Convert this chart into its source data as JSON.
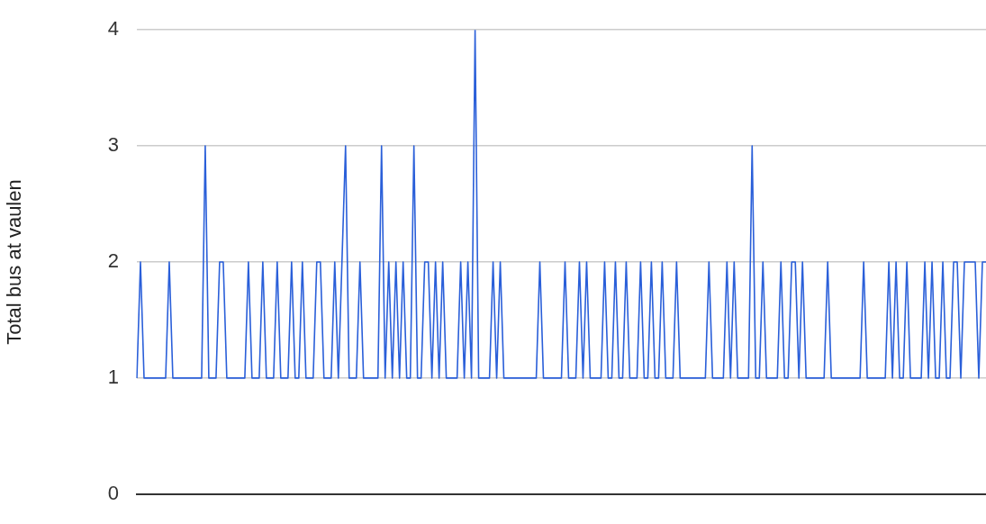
{
  "chart_data": {
    "type": "line",
    "ylabel": "Total bus at vaulen",
    "ylim": [
      0,
      4
    ],
    "yticks": [
      0,
      1,
      2,
      3,
      4
    ],
    "grid": "y",
    "legend": false,
    "marker": "none",
    "line_style": "solid",
    "categories": [
      null,
      null,
      null,
      null,
      null,
      null,
      null,
      null,
      null,
      null,
      null,
      null,
      null,
      null,
      null,
      null,
      null,
      null,
      null,
      null,
      null,
      null,
      null,
      null,
      null,
      null,
      null,
      null,
      null,
      null,
      null,
      null,
      null,
      null,
      null,
      null,
      null,
      null,
      null,
      null,
      null,
      null,
      null,
      null,
      null,
      null,
      null,
      null,
      null,
      null,
      null,
      null,
      null,
      null,
      null,
      null,
      null,
      null,
      null,
      null,
      null,
      null,
      null,
      null,
      null,
      null,
      null,
      null,
      null,
      null,
      null,
      null,
      null,
      null,
      null,
      null,
      null,
      null,
      null,
      null,
      null,
      null,
      null,
      null,
      null,
      null,
      null,
      null,
      null,
      null,
      null,
      null,
      null,
      null,
      null,
      null,
      null,
      null,
      null,
      null,
      null,
      null,
      null,
      null,
      null,
      null,
      null,
      null,
      null,
      null,
      null,
      null,
      null,
      null,
      null,
      null,
      null,
      null,
      null,
      null,
      null,
      null,
      null,
      null,
      null,
      null,
      null,
      null,
      null,
      null,
      null,
      null,
      null,
      null,
      null,
      null,
      null,
      null,
      null,
      null,
      null,
      null,
      null,
      null,
      null,
      null,
      null,
      null,
      null,
      null,
      null,
      null,
      null,
      null,
      null,
      null,
      null,
      null,
      null,
      null,
      null,
      null,
      null,
      null,
      null,
      null,
      null,
      null,
      null,
      null,
      null,
      null,
      null,
      null,
      null,
      null,
      null,
      null,
      null,
      null,
      null,
      null,
      null,
      null,
      null,
      null,
      null,
      null,
      null,
      null,
      null,
      null,
      null,
      null,
      null,
      null,
      null,
      null,
      null,
      null,
      null,
      null,
      null,
      null,
      null,
      null,
      null,
      null,
      null,
      null,
      null,
      null,
      null,
      null,
      null,
      null,
      null,
      null,
      null,
      null,
      null,
      null,
      null,
      null,
      null,
      null,
      null,
      null,
      null,
      null,
      null,
      null,
      null,
      null,
      null,
      null,
      null
    ],
    "series": [
      {
        "color": "#2a5fd9",
        "values": [
          1,
          2,
          1,
          1,
          1,
          1,
          1,
          1,
          1,
          2,
          1,
          1,
          1,
          1,
          1,
          1,
          1,
          1,
          1,
          3,
          1,
          1,
          1,
          2,
          2,
          1,
          1,
          1,
          1,
          1,
          1,
          2,
          1,
          1,
          1,
          2,
          1,
          1,
          1,
          2,
          1,
          1,
          1,
          2,
          1,
          1,
          2,
          1,
          1,
          1,
          2,
          2,
          1,
          1,
          1,
          2,
          1,
          2,
          3,
          1,
          1,
          1,
          2,
          1,
          1,
          1,
          1,
          1,
          3,
          1,
          2,
          1,
          2,
          1,
          2,
          1,
          1,
          3,
          1,
          1,
          2,
          2,
          1,
          2,
          1,
          2,
          1,
          1,
          1,
          1,
          2,
          1,
          2,
          1,
          4,
          1,
          1,
          1,
          1,
          2,
          1,
          2,
          1,
          1,
          1,
          1,
          1,
          1,
          1,
          1,
          1,
          1,
          2,
          1,
          1,
          1,
          1,
          1,
          1,
          2,
          1,
          1,
          1,
          2,
          1,
          2,
          1,
          1,
          1,
          1,
          2,
          1,
          1,
          2,
          1,
          1,
          2,
          1,
          1,
          1,
          2,
          1,
          1,
          2,
          1,
          1,
          2,
          1,
          1,
          1,
          2,
          1,
          1,
          1,
          1,
          1,
          1,
          1,
          1,
          2,
          1,
          1,
          1,
          1,
          2,
          1,
          2,
          1,
          1,
          1,
          1,
          3,
          1,
          1,
          2,
          1,
          1,
          1,
          1,
          2,
          1,
          1,
          2,
          2,
          1,
          2,
          1,
          1,
          1,
          1,
          1,
          1,
          2,
          1,
          1,
          1,
          1,
          1,
          1,
          1,
          1,
          1,
          2,
          1,
          1,
          1,
          1,
          1,
          1,
          2,
          1,
          2,
          1,
          1,
          2,
          1,
          1,
          1,
          1,
          2,
          1,
          2,
          1,
          1,
          2,
          1,
          1,
          2,
          2,
          1,
          2,
          2,
          2,
          2,
          1,
          2,
          2
        ]
      }
    ]
  }
}
